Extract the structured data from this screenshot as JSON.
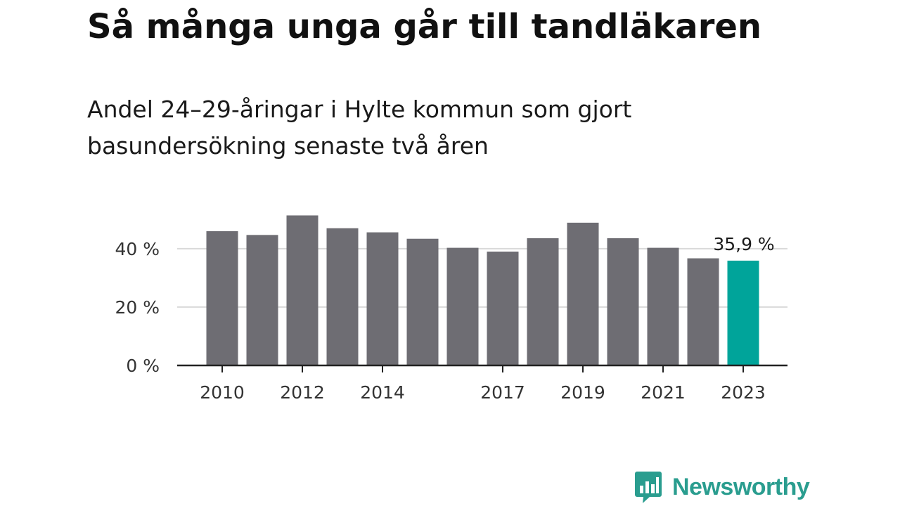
{
  "header": {
    "title": "Så många unga går till tandläkaren",
    "subtitle": "Andel 24–29-åringar i Hylte kommun som gjort basundersökning senaste två åren"
  },
  "branding": {
    "name": "Newsworthy",
    "logo_icon": "bar-chart-speech-bubble-icon",
    "color": "#2a9d8f"
  },
  "chart_data": {
    "type": "bar",
    "x": [
      2010,
      2011,
      2012,
      2013,
      2014,
      2015,
      2016,
      2017,
      2018,
      2019,
      2020,
      2021,
      2022,
      2023
    ],
    "values": [
      46.0,
      44.7,
      51.4,
      47.0,
      45.6,
      43.4,
      40.3,
      39.0,
      43.6,
      48.9,
      43.6,
      40.3,
      36.7,
      35.9
    ],
    "x_tick_labels": [
      "2010",
      "2012",
      "2014",
      "2017",
      "2019",
      "2021",
      "2023"
    ],
    "y_ticks": [
      0,
      20,
      40
    ],
    "y_tick_labels": [
      "0 %",
      "20 %",
      "40 %"
    ],
    "ylim": [
      0,
      52
    ],
    "grid": true,
    "highlight_index": 13,
    "highlight_label": "35,9 %",
    "colors": {
      "bar": "#6e6d73",
      "highlight": "#00a49a",
      "grid": "#d9d9d9",
      "axis": "#222222"
    }
  }
}
